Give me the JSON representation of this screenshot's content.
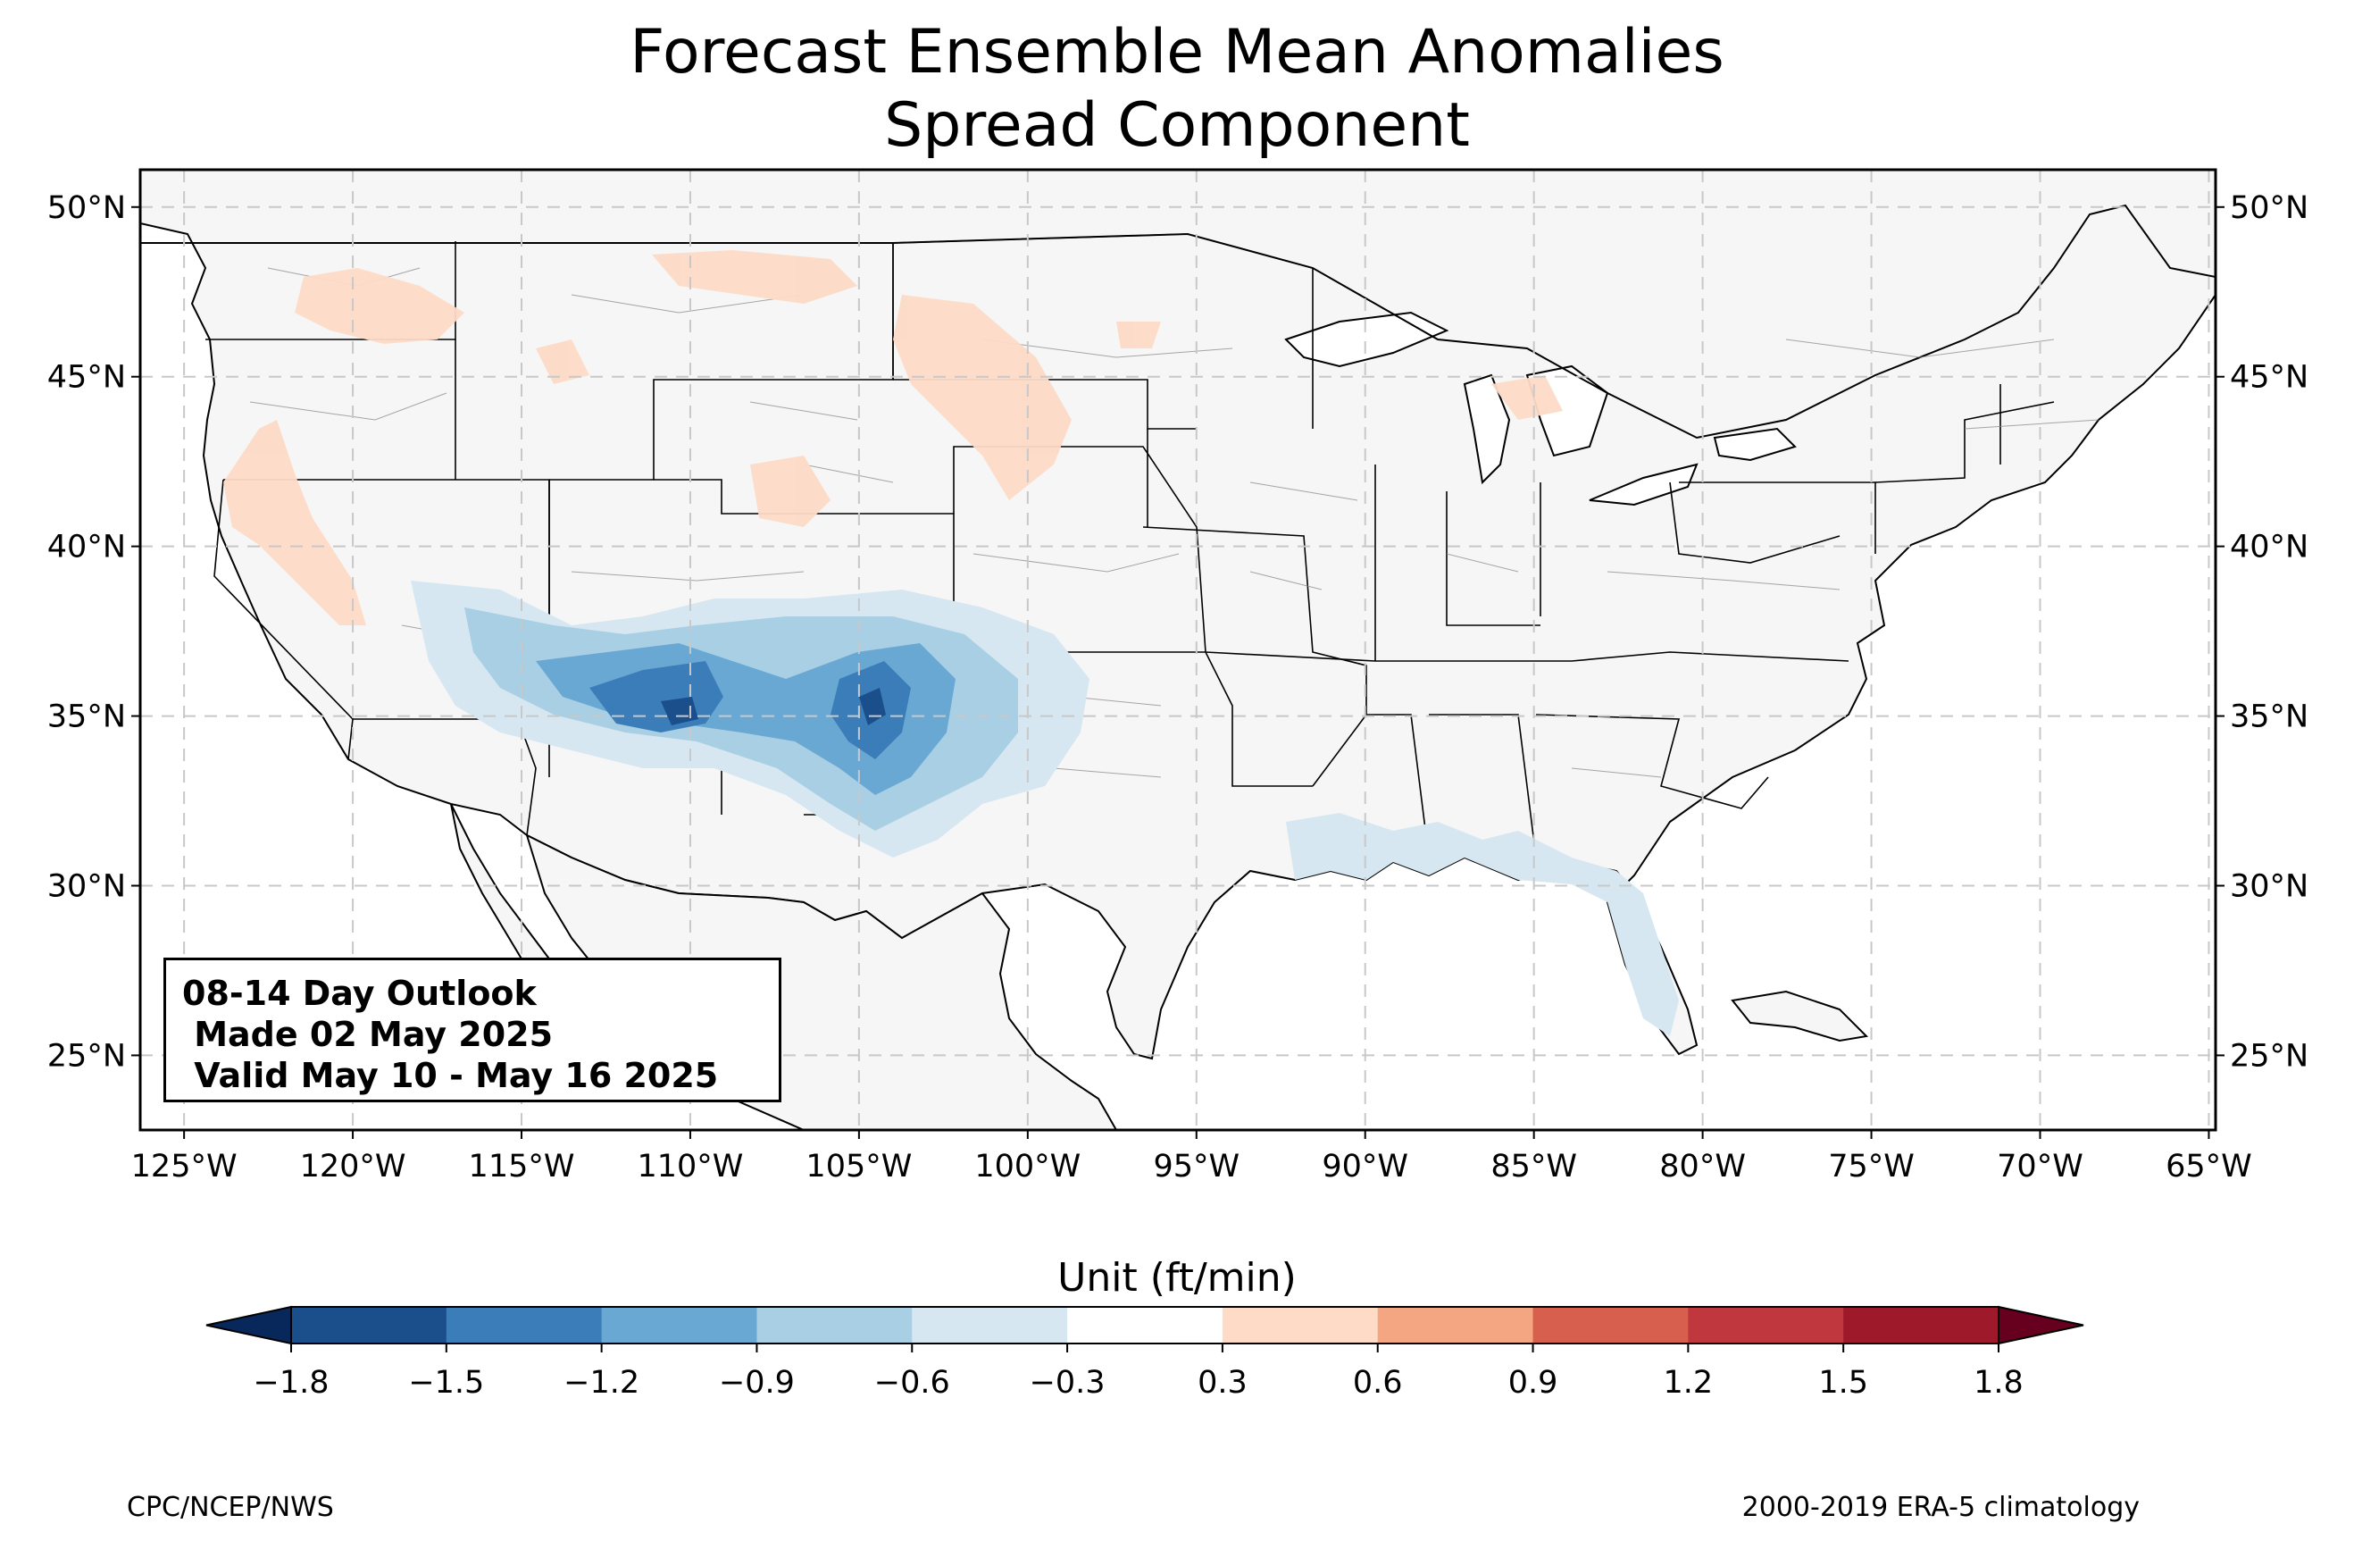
{
  "title_line1": "Forecast Ensemble Mean Anomalies",
  "title_line2": "Spread Component",
  "info_box": {
    "line1": "08-14 Day Outlook",
    "line2": " Made 02 May 2025",
    "line3": " Valid May 10 - May 16 2025"
  },
  "colorbar": {
    "title": "Unit (ft/min)",
    "tick_labels": [
      "−1.8",
      "−1.5",
      "−1.2",
      "−0.9",
      "−0.6",
      "−0.3",
      "0.3",
      "0.6",
      "0.9",
      "1.2",
      "1.5",
      "1.8"
    ],
    "colors": [
      "#1a4f8b",
      "#3a7db8",
      "#6aa8d4",
      "#a8cfe4",
      "#d6e7f1",
      "#ffffff",
      "#fddbc7",
      "#f4a582",
      "#d6604d",
      "#c0373d",
      "#9e1a2a"
    ],
    "under_color": "#08285c",
    "over_color": "#67001f"
  },
  "map": {
    "lon_range": [
      -126.3,
      -64.8
    ],
    "lat_range": [
      22.8,
      51.1
    ],
    "lon_ticks": [
      -125,
      -120,
      -115,
      -110,
      -105,
      -100,
      -95,
      -90,
      -85,
      -80,
      -75,
      -70,
      -65
    ],
    "lat_ticks": [
      25,
      30,
      35,
      40,
      45,
      50
    ],
    "lon_labels": [
      "125°W",
      "120°W",
      "115°W",
      "110°W",
      "105°W",
      "100°W",
      "95°W",
      "90°W",
      "85°W",
      "80°W",
      "75°W",
      "70°W",
      "65°W"
    ],
    "lat_labels": [
      "25°N",
      "30°N",
      "35°N",
      "40°N",
      "45°N",
      "50°N"
    ],
    "land_color": "#f5f6f5",
    "grid": "dashed",
    "anomaly_areas": [
      {
        "region": "southwest-four-corners",
        "level": "-1.5 to -1.2",
        "color": "#3a7db8"
      },
      {
        "region": "new-mexico-east",
        "level": "-1.5 to -1.2",
        "color": "#3a7db8"
      },
      {
        "region": "southwest-broad",
        "level": "-0.9 to -0.6",
        "color": "#a8cfe4"
      },
      {
        "region": "great-basin",
        "level": "0.3 to 0.6",
        "color": "#fddbc7"
      },
      {
        "region": "northern-plains",
        "level": "0.3 to 0.6",
        "color": "#fddbc7"
      }
    ]
  },
  "footer_left": "CPC/NCEP/NWS",
  "footer_right": "2000-2019 ERA-5 climatology"
}
